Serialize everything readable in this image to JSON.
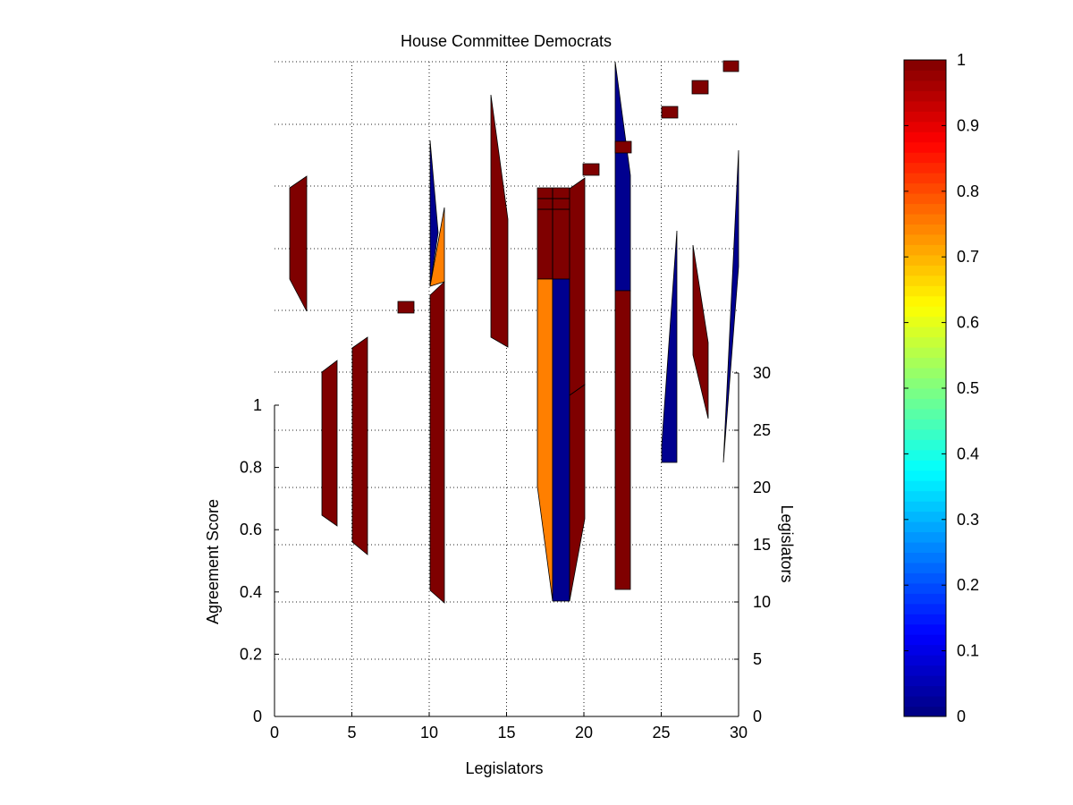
{
  "chart_data": {
    "type": "3d-bar",
    "title": "House Committee Democrats",
    "xlabel": "Legislators",
    "ylabel": "Agreement Score",
    "zlabel": "Legislators",
    "xlim": [
      0,
      30
    ],
    "xticks": [
      "0",
      "5",
      "10",
      "15",
      "20",
      "25",
      "30"
    ],
    "zlim": [
      0,
      1
    ],
    "zticks": [
      "0",
      "0.2",
      "0.4",
      "0.6",
      "0.8",
      "1"
    ],
    "ylim": [
      0,
      30
    ],
    "yticks": [
      "0",
      "5",
      "10",
      "15",
      "20",
      "25",
      "30"
    ],
    "grid": true,
    "colormap": "jet",
    "colorbar": {
      "range": [
        0,
        1
      ],
      "ticks": [
        "0",
        "0.1",
        "0.2",
        "0.3",
        "0.4",
        "0.5",
        "0.6",
        "0.7",
        "0.8",
        "0.9",
        "1"
      ],
      "placement": "right"
    },
    "colors": {
      "high": "#7f0000",
      "mid": "#ff7f00",
      "low": "#00008f"
    }
  }
}
